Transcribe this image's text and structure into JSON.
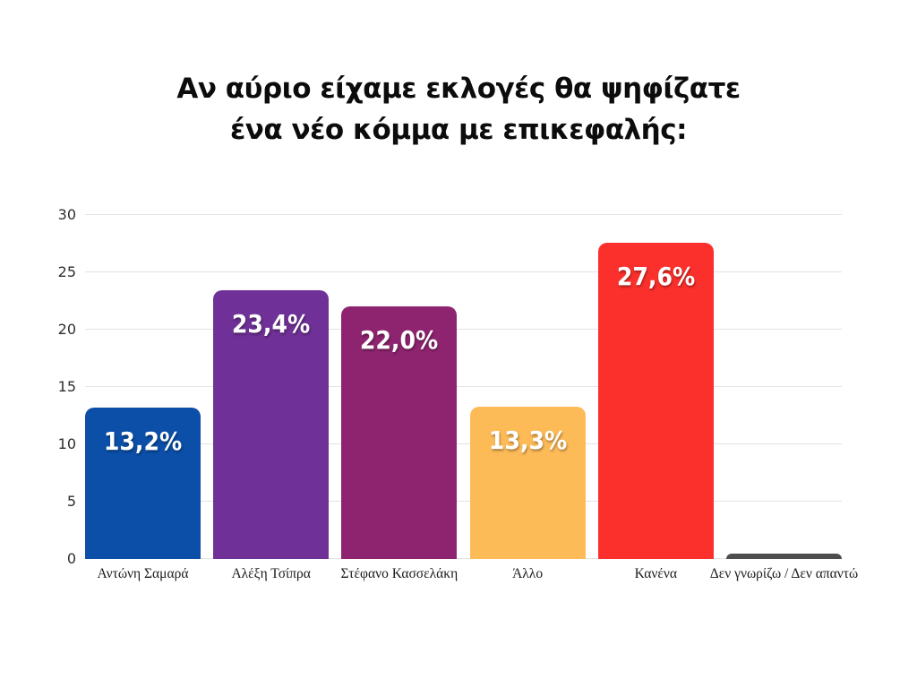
{
  "title": {
    "line1": "Αν αύριο είχαμε εκλογές θα ψηφίζατε",
    "line2": "ένα νέο κόμμα με επικεφαλής:"
  },
  "chart_data": {
    "type": "bar",
    "title": "Αν αύριο είχαμε εκλογές θα ψηφίζατε ένα νέο κόμμα με επικεφαλής:",
    "categories": [
      "Αντώνη Σαμαρά",
      "Αλέξη Τσίπρα",
      "Στέφανο Κασσελάκη",
      "Άλλο",
      "Κανένα",
      "Δεν γνωρίζω / Δεν απαντώ"
    ],
    "values": [
      13.2,
      23.4,
      22.0,
      13.3,
      27.6,
      0.5
    ],
    "value_labels": [
      "13,2%",
      "23,4%",
      "22,0%",
      "13,3%",
      "27,6%",
      ""
    ],
    "bar_colors": [
      "#0b4fa8",
      "#6f3097",
      "#8e2470",
      "#fdbb58",
      "#fb302c",
      "#4d4d4d"
    ],
    "xlabel": "",
    "ylabel": "",
    "ylim": [
      0,
      30
    ],
    "yticks": [
      0,
      5,
      10,
      15,
      20,
      25,
      30
    ],
    "grid": "horizontal",
    "legend": "none",
    "style": {
      "background": "#ffffff",
      "gridline_color": "#e3e3e3",
      "bar_label_text_color": "#ffffff",
      "axis_text_color": "#2e2e2e",
      "title_color": "#0c0c0c"
    }
  }
}
